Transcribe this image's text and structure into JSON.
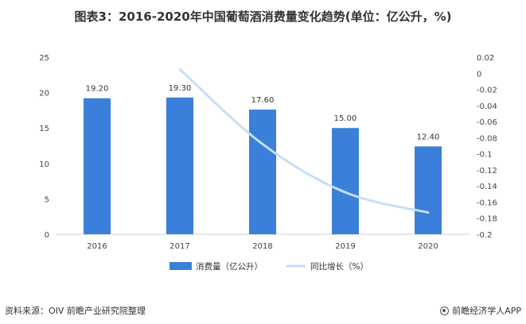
{
  "page": {
    "title": "图表3：2016-2020年中国葡萄酒消费量变化趋势(单位：亿公升，%)",
    "source": "资料来源：OIV 前瞻产业研究院整理",
    "brand": "前瞻经济学人APP"
  },
  "colors": {
    "bar": "#3a7fd9",
    "line": "#c6dff7",
    "axis": "#d0d0d0"
  },
  "chart_data": {
    "type": "bar",
    "title": "图表3：2016-2020年中国葡萄酒消费量变化趋势(单位：亿公升，%)",
    "categories": [
      "2016",
      "2017",
      "2018",
      "2019",
      "2020"
    ],
    "series": [
      {
        "name": "消费量（亿公升）",
        "type": "bar",
        "axis": "left",
        "values": [
          19.2,
          19.3,
          17.6,
          15.0,
          12.4
        ],
        "labels": [
          "19.20",
          "19.30",
          "17.60",
          "15.00",
          "12.40"
        ]
      },
      {
        "name": "同比增长（%）",
        "type": "line",
        "axis": "right",
        "values": [
          null,
          0.005,
          -0.088,
          -0.148,
          -0.173
        ]
      }
    ],
    "y_left": {
      "ylim": [
        0,
        25
      ],
      "ticks": [
        0,
        5,
        10,
        15,
        20,
        25
      ]
    },
    "y_right": {
      "ylim": [
        -0.2,
        0.02
      ],
      "ticks": [
        0.02,
        0,
        -0.02,
        -0.04,
        -0.06,
        -0.08,
        -0.1,
        -0.12,
        -0.14,
        -0.16,
        -0.18,
        -0.2
      ],
      "tick_labels": [
        "0.02",
        "0",
        "-0.02",
        "-0.04",
        "-0.06",
        "-0.08",
        "-0.1",
        "-0.12",
        "-0.14",
        "-0.16",
        "-0.18",
        "-0.2"
      ]
    },
    "grid": false,
    "legend_position": "bottom"
  }
}
